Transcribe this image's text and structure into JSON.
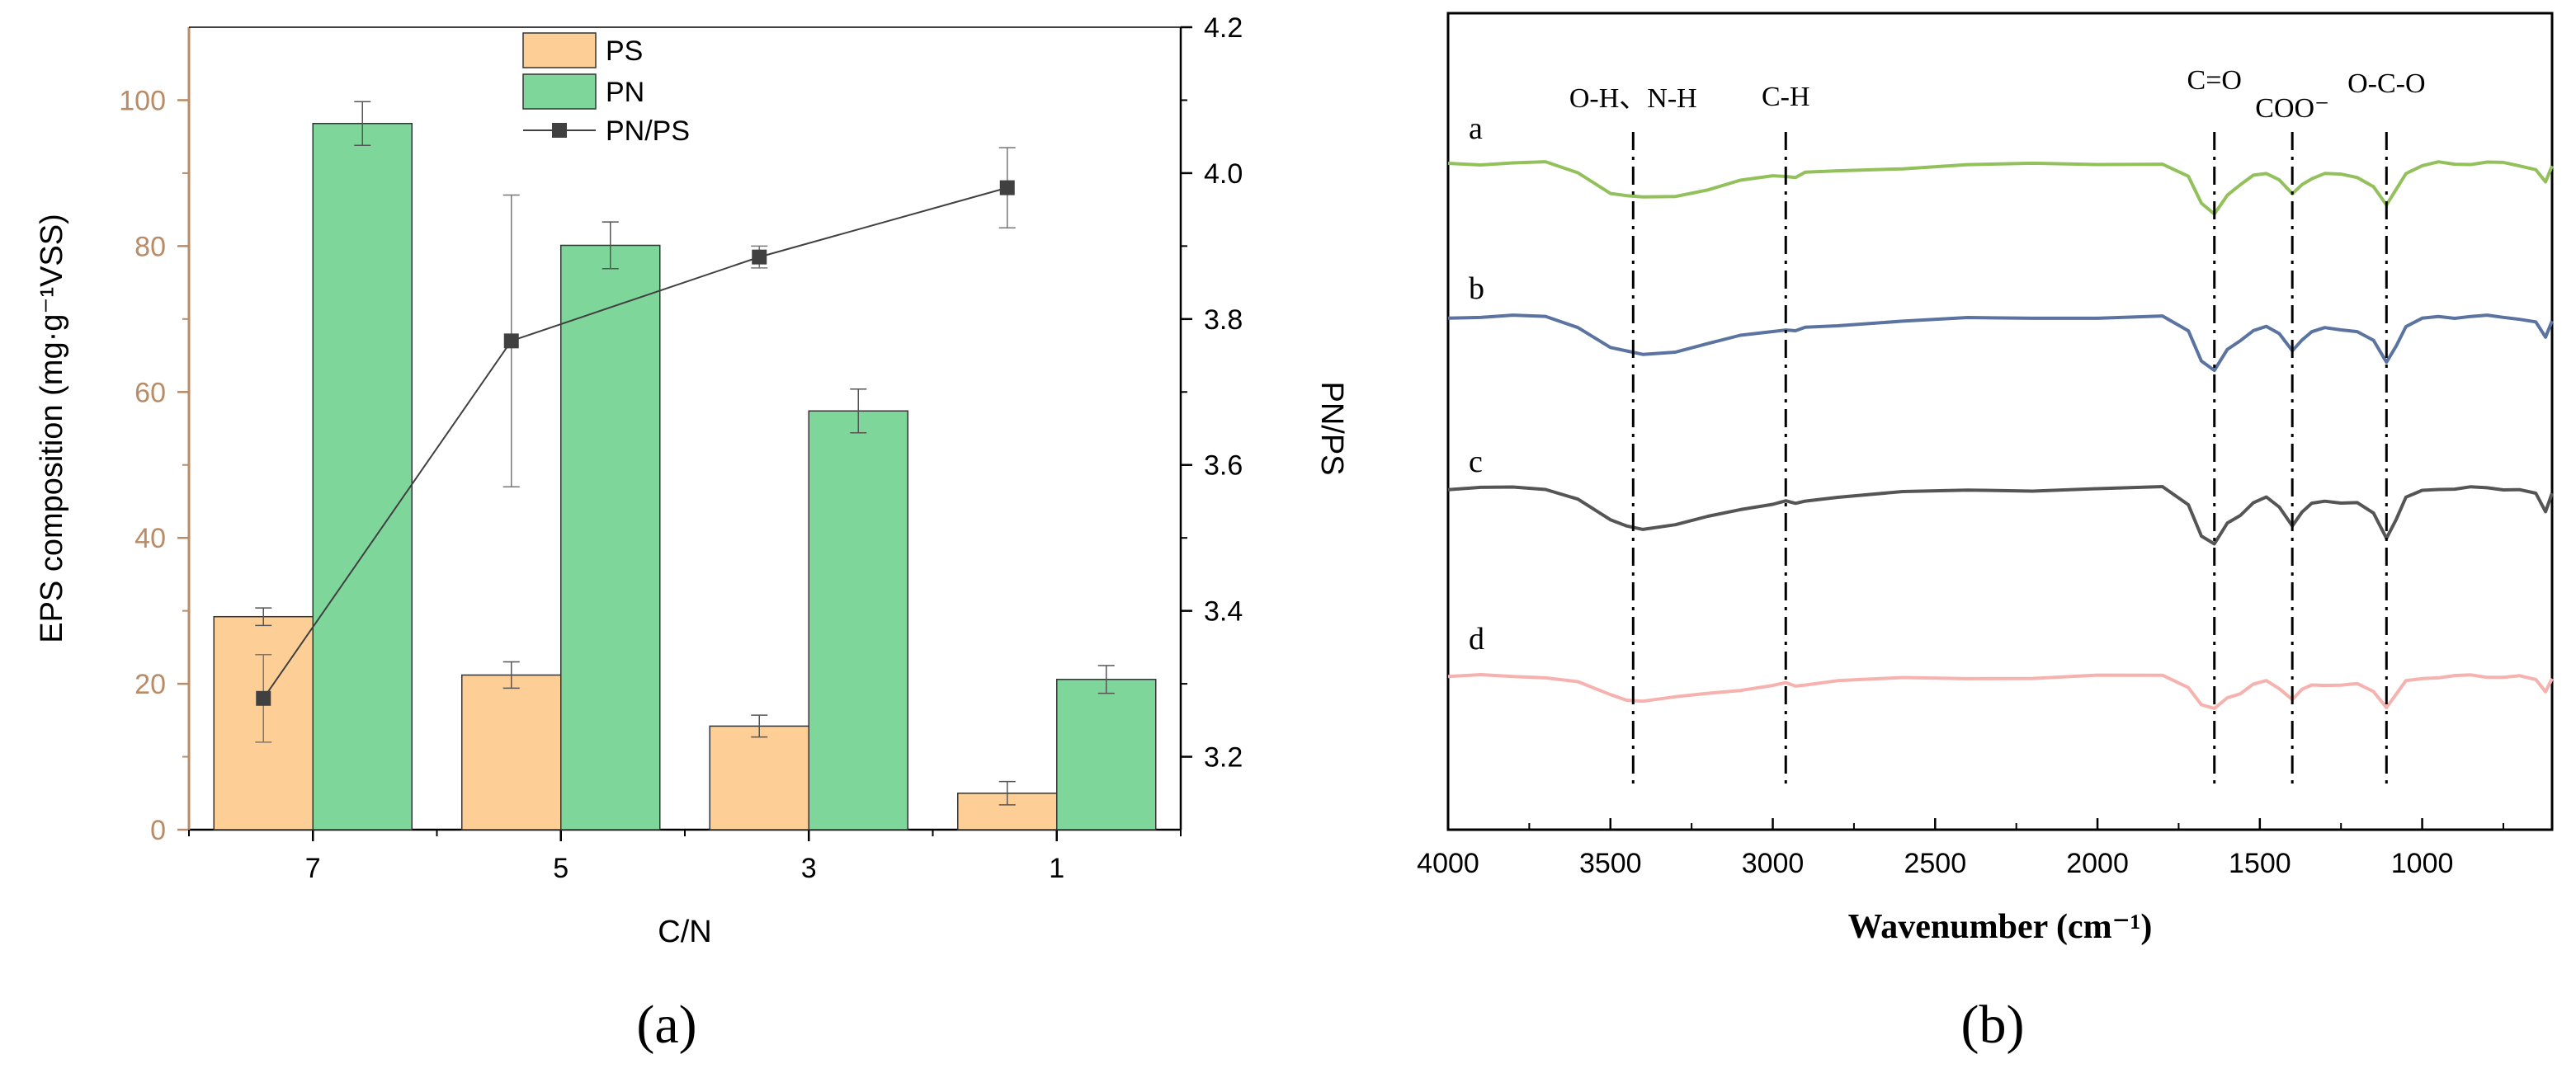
{
  "panel_a": {
    "caption": "(a)",
    "chart_data": {
      "type": "bar",
      "categories": [
        "7",
        "5",
        "3",
        "1"
      ],
      "xlabel": "C/N",
      "ylabel": "EPS composition (mg·g⁻¹VSS)",
      "y2label": "PN/PS",
      "ylim": [
        0,
        110
      ],
      "y2lim": [
        3.1,
        4.2
      ],
      "yticks": [
        "0",
        "20",
        "40",
        "60",
        "80",
        "100"
      ],
      "y2ticks": [
        "3.2",
        "3.4",
        "3.6",
        "3.8",
        "4.0",
        "4.2"
      ],
      "legend": {
        "position": "top-center",
        "entries": [
          "PS",
          "PN",
          "PN/PS"
        ]
      },
      "colors": {
        "PS": "#FDCF97",
        "PN": "#7FD69B",
        "PN/PS": "#404040",
        "left_axis": "#B98B66"
      },
      "series": [
        {
          "name": "PS",
          "type": "bar",
          "axis": "left",
          "values": [
            29.2,
            21.2,
            14.2,
            5.0
          ],
          "errors": [
            1.2,
            1.8,
            1.5,
            1.6
          ]
        },
        {
          "name": "PN",
          "type": "bar",
          "axis": "left",
          "values": [
            96.8,
            80.1,
            57.4,
            20.6
          ],
          "errors": [
            3.0,
            3.2,
            3.0,
            1.9
          ]
        },
        {
          "name": "PN/PS",
          "type": "line",
          "axis": "right",
          "values": [
            3.28,
            3.77,
            3.885,
            3.98
          ],
          "errors": [
            0.06,
            0.2,
            0.015,
            0.055
          ]
        }
      ]
    }
  },
  "panel_b": {
    "caption": "(b)",
    "chart_data": {
      "type": "line",
      "xlabel": "Wavenumber (cm⁻¹)",
      "xlim": [
        4000,
        600
      ],
      "xticks": [
        "4000",
        "3500",
        "3000",
        "2500",
        "2000",
        "1500",
        "1000"
      ],
      "grid": false,
      "curves": [
        {
          "label": "a",
          "color": "#92C05A"
        },
        {
          "label": "b",
          "color": "#5A73A0"
        },
        {
          "label": "c",
          "color": "#555555"
        },
        {
          "label": "d",
          "color": "#F6B2AE"
        }
      ],
      "x": [
        4000,
        3900,
        3800,
        3700,
        3600,
        3500,
        3450,
        3400,
        3300,
        3200,
        3100,
        3000,
        2960,
        2930,
        2900,
        2800,
        2600,
        2400,
        2200,
        2000,
        1800,
        1720,
        1680,
        1640,
        1600,
        1560,
        1520,
        1480,
        1440,
        1400,
        1370,
        1340,
        1300,
        1250,
        1200,
        1150,
        1110,
        1080,
        1050,
        1000,
        950,
        900,
        850,
        800,
        750,
        700,
        650,
        620,
        600
      ],
      "profile": [
        0,
        0,
        0,
        0,
        -0.15,
        -0.5,
        -0.58,
        -0.6,
        -0.55,
        -0.45,
        -0.32,
        -0.22,
        -0.2,
        -0.25,
        -0.18,
        -0.12,
        -0.07,
        -0.04,
        -0.02,
        0,
        0,
        -0.25,
        -0.7,
        -0.85,
        -0.55,
        -0.4,
        -0.2,
        -0.15,
        -0.3,
        -0.55,
        -0.35,
        -0.25,
        -0.2,
        -0.2,
        -0.22,
        -0.4,
        -0.75,
        -0.45,
        -0.15,
        -0.05,
        0,
        0,
        0,
        0,
        0,
        -0.02,
        -0.1,
        -0.35,
        -0.05
      ],
      "annotations": [
        {
          "label": "O-H、N-H",
          "x": 3430
        },
        {
          "label": "C-H",
          "x": 2960
        },
        {
          "label": "C=O",
          "x": 1640
        },
        {
          "label": "COO⁻",
          "x": 1400
        },
        {
          "label": "O-C-O",
          "x": 1110
        }
      ]
    }
  }
}
